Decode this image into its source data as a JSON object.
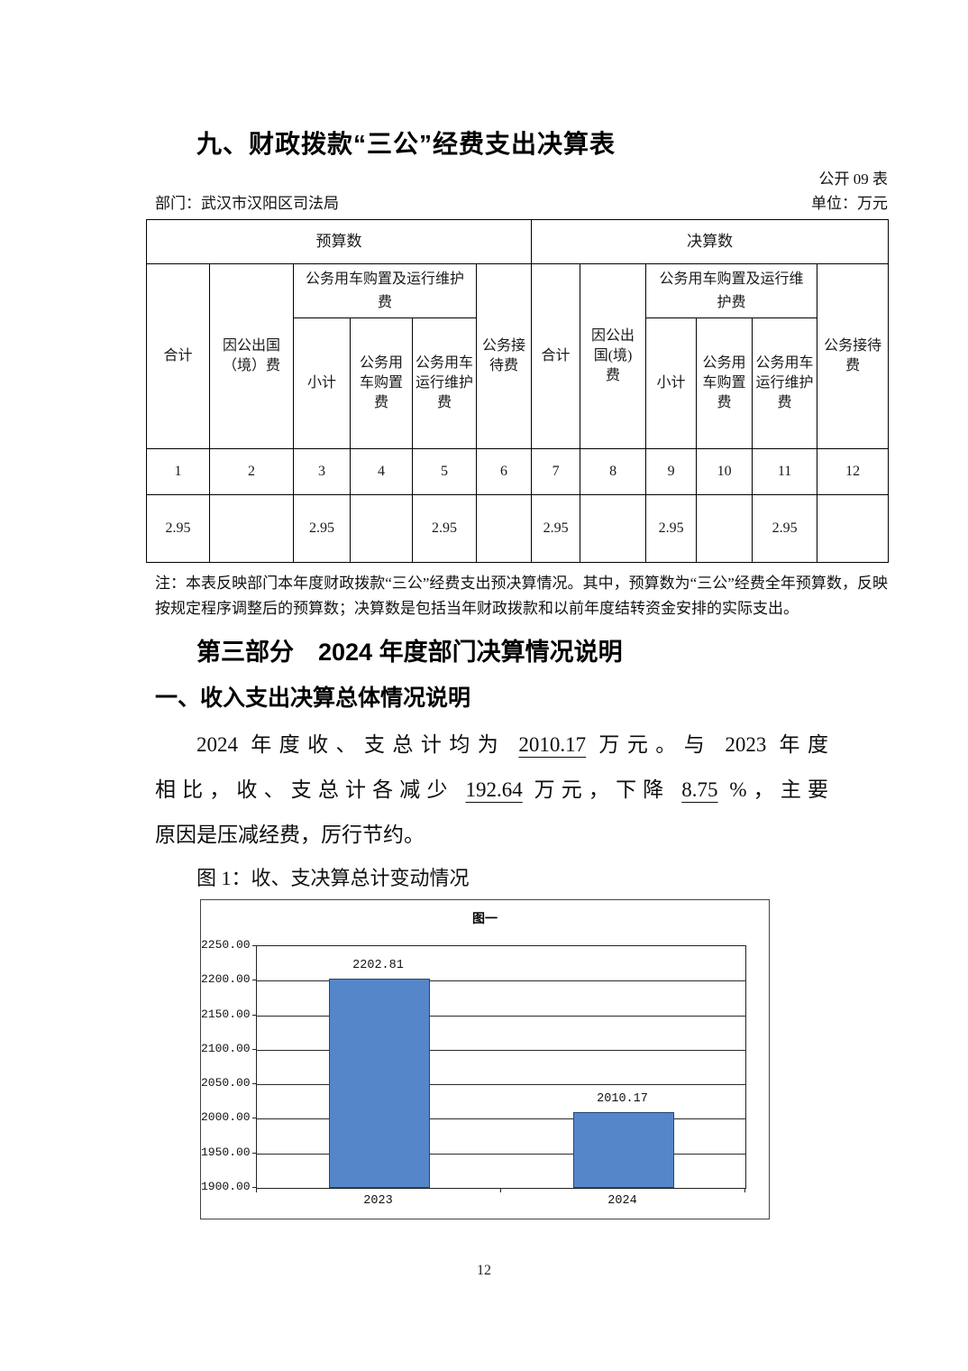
{
  "page": {
    "number": "12"
  },
  "header": {
    "title": "九、财政拨款“三公”经费支出决算表",
    "table_code": "公开 09 表",
    "department_label": "部门：武汉市汉阳区司法局",
    "unit_label": "单位：万元"
  },
  "table": {
    "group_headers": {
      "budget": "预算数",
      "final": "决算数"
    },
    "col_headers": {
      "total": "合计",
      "abroad_fullwidth": "因公出国（境）费",
      "abroad_halfwidth": "因公出国(境)费",
      "vehicle_group": "公务用车购置及运行维护费",
      "subtotal": "小计",
      "purchase": "公务用车购置费",
      "operation": "公务用车运行维护费",
      "reception": "公务接待费"
    },
    "column_numbers": [
      "1",
      "2",
      "3",
      "4",
      "5",
      "6",
      "7",
      "8",
      "9",
      "10",
      "11",
      "12"
    ],
    "values": [
      "2.95",
      "",
      "2.95",
      "",
      "2.95",
      "",
      "2.95",
      "",
      "2.95",
      "",
      "2.95",
      ""
    ]
  },
  "note": "注：本表反映部门本年度财政拨款“三公”经费支出预决算情况。其中，预算数为“三公”经费全年预算数，反映按规定程序调整后的预算数；决算数是包括当年财政拨款和以前年度结转资金安排的实际支出。",
  "section": {
    "part_heading": "第三部分　2024 年度部门决算情况说明",
    "sub_heading": "一、收入支出决算总体情况说明",
    "paragraph_lines": [
      {
        "indent": true,
        "last_justify": true,
        "segments": [
          {
            "text": "2024 年度收、支总计均为 "
          },
          {
            "text": "2010.17",
            "u": true
          },
          {
            "text": " 万元。与 2023 年度"
          }
        ]
      },
      {
        "last_justify": true,
        "segments": [
          {
            "text": "相比，收、支总计各减少 "
          },
          {
            "text": "192.64",
            "u": true
          },
          {
            "text": " 万元，下降 "
          },
          {
            "text": "8.75",
            "u": true
          },
          {
            "text": " %，主要"
          }
        ]
      },
      {
        "segments": [
          {
            "text": "原因是压减经费，厉行节约。"
          }
        ]
      }
    ],
    "figure_caption": "图 1：收、支决算总计变动情况"
  },
  "chart_data": {
    "type": "bar",
    "title": "图一",
    "categories": [
      "2023",
      "2024"
    ],
    "values": [
      2202.81,
      2010.17
    ],
    "data_labels": [
      "2202.81",
      "2010.17"
    ],
    "ylim": [
      1900,
      2250
    ],
    "ytick_interval": 50,
    "ytick_labels": [
      "2250.00",
      "2200.00",
      "2150.00",
      "2100.00",
      "2050.00",
      "2000.00",
      "1950.00",
      "1900.00"
    ],
    "xlabel": "",
    "ylabel": "",
    "grid": true,
    "legend_position": "none",
    "bar_color": "#5586ca",
    "bar_border_color": "#24466e"
  }
}
